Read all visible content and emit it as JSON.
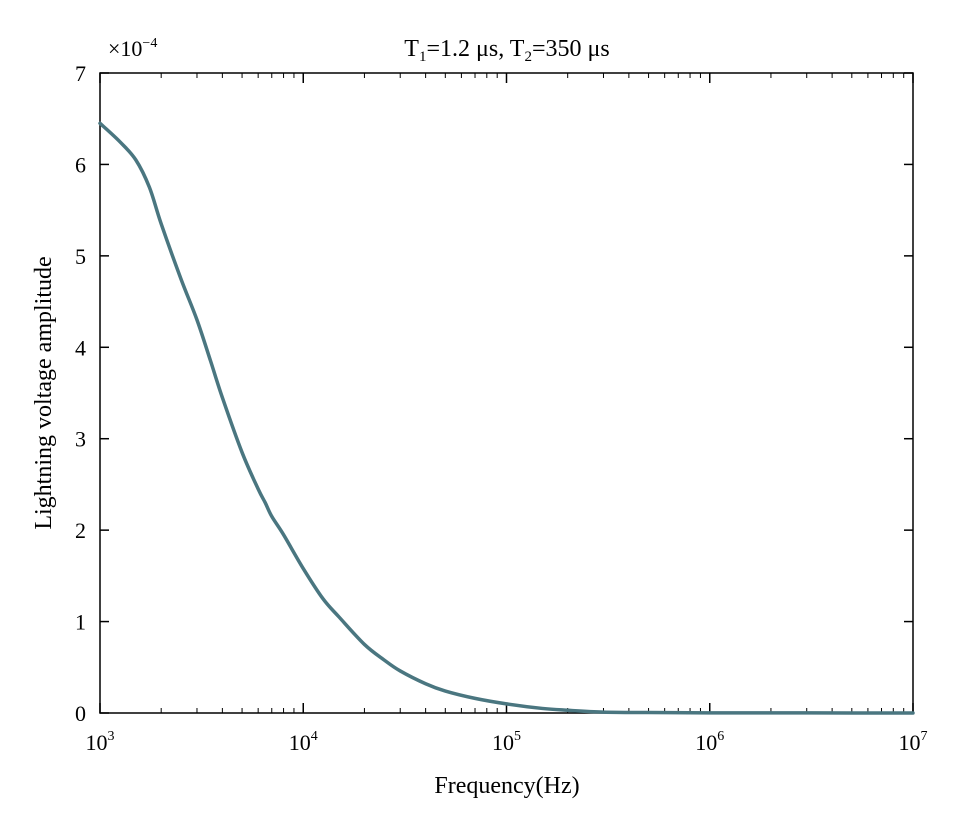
{
  "chart_data": {
    "type": "line",
    "title": {
      "t1_symbol": "T",
      "t1_sub": "1",
      "t1_value": "=1.2 μs, ",
      "t2_symbol": "T",
      "t2_sub": "2",
      "t2_value": "=350 μs"
    },
    "xlabel": "Frequency(Hz)",
    "ylabel": "Lightning voltage amplitude",
    "y_multiplier": {
      "base": "×10",
      "exponent": "−4"
    },
    "x_scale": "log",
    "xlim": [
      1000,
      10000000
    ],
    "ylim": [
      0,
      7
    ],
    "x_ticks": [
      {
        "base": "10",
        "exp": "3",
        "value": 1000
      },
      {
        "base": "10",
        "exp": "4",
        "value": 10000
      },
      {
        "base": "10",
        "exp": "5",
        "value": 100000
      },
      {
        "base": "10",
        "exp": "6",
        "value": 1000000
      },
      {
        "base": "10",
        "exp": "7",
        "value": 10000000
      }
    ],
    "y_ticks": [
      "0",
      "1",
      "2",
      "3",
      "4",
      "5",
      "6",
      "7"
    ],
    "grid": false,
    "line_color": "#4a7680",
    "series": [
      {
        "x": [
          1000,
          1250,
          1500,
          1750,
          2000,
          2500,
          3000,
          3500,
          4000,
          5000,
          6000,
          6500,
          7000,
          8000,
          10000,
          12500,
          15000,
          20000,
          25000,
          30000,
          40000,
          50000,
          70000,
          100000,
          150000,
          200000,
          300000,
          500000,
          1000000,
          2000000,
          5000000,
          10000000
        ],
        "y": [
          6.45,
          6.25,
          6.05,
          5.75,
          5.35,
          4.75,
          4.3,
          3.85,
          3.45,
          2.85,
          2.45,
          2.3,
          2.15,
          1.95,
          1.58,
          1.25,
          1.05,
          0.75,
          0.58,
          0.46,
          0.32,
          0.24,
          0.16,
          0.1,
          0.05,
          0.03,
          0.01,
          0.005,
          0.002,
          0.001,
          0.0005,
          0.0
        ]
      }
    ]
  }
}
